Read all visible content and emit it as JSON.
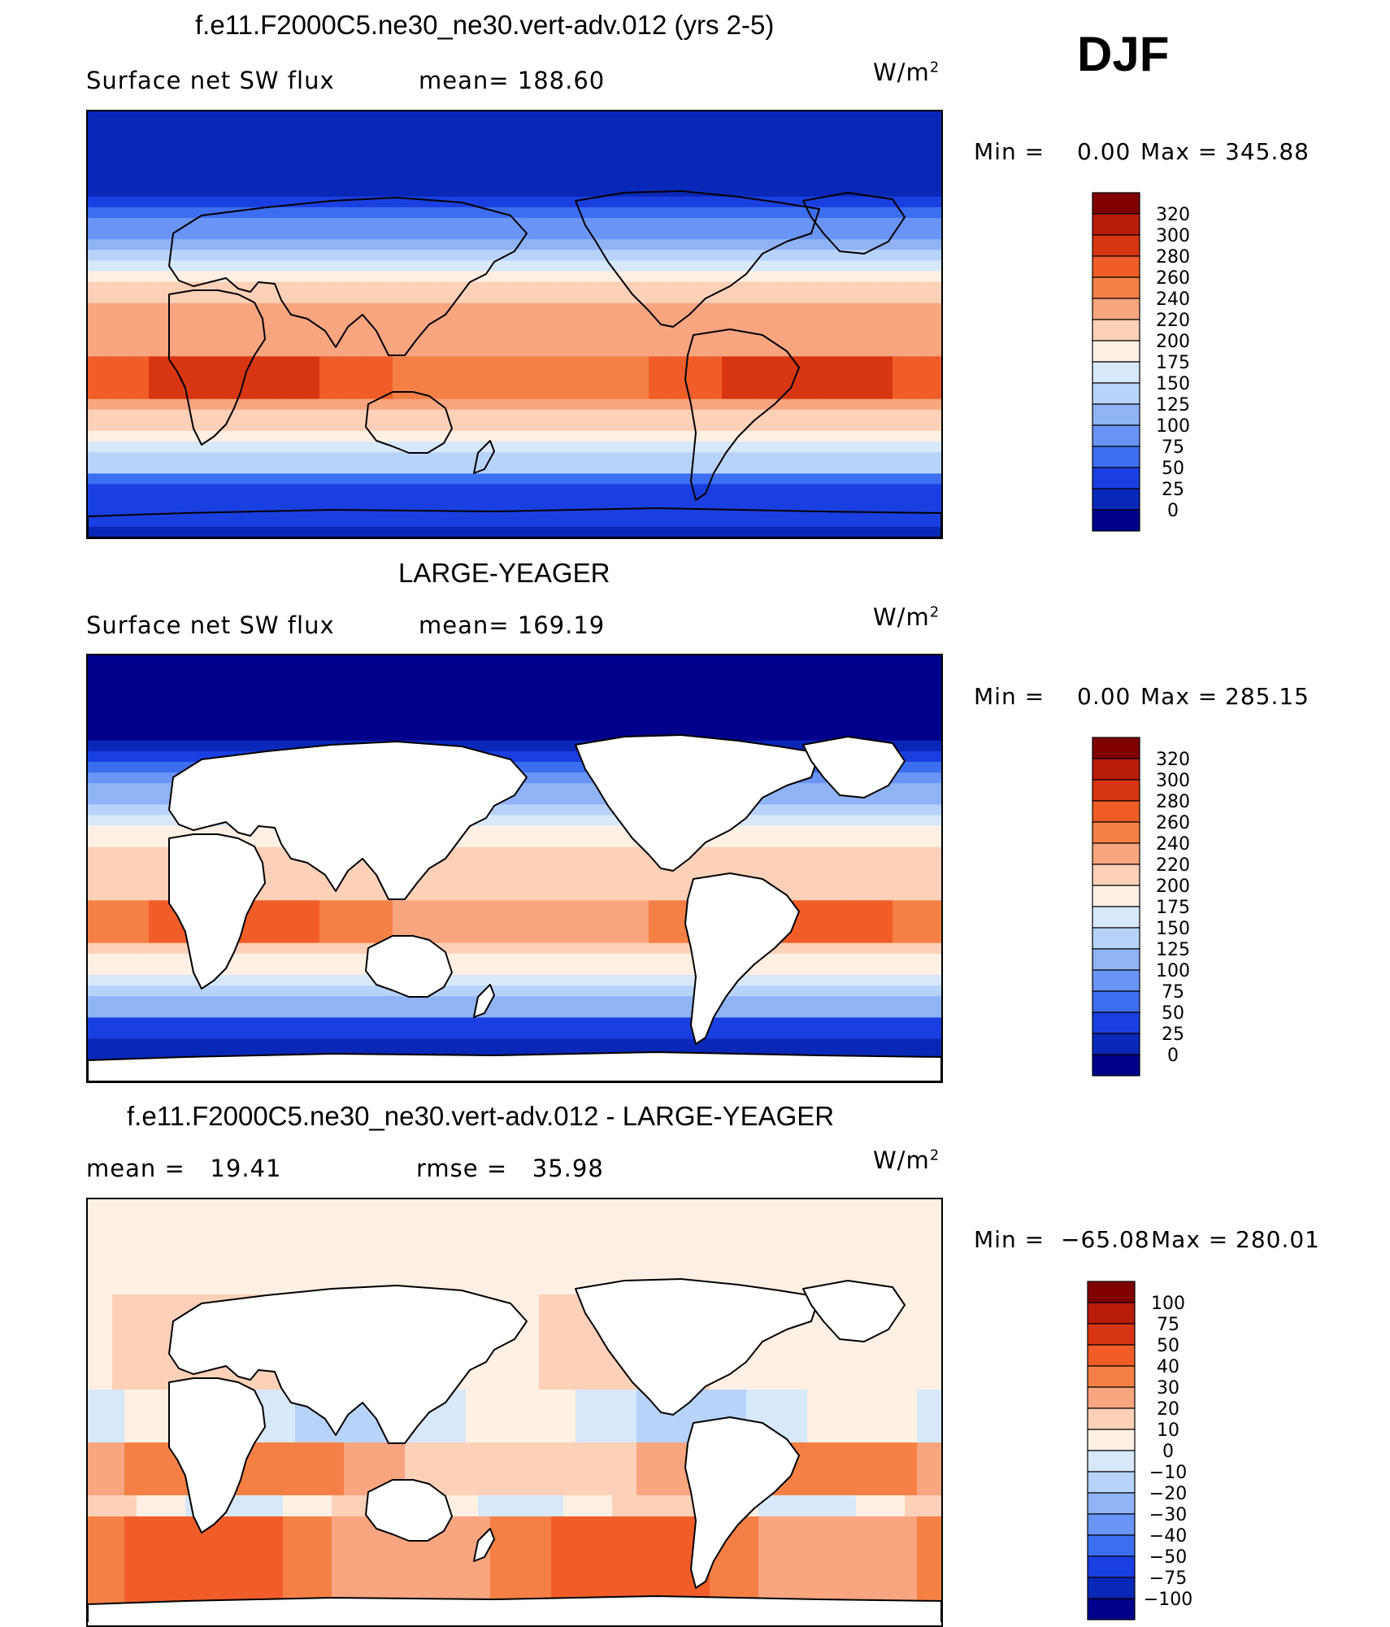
{
  "chart_data": [
    {
      "type": "heatmap",
      "title": "f.e11.F2000C5.ne30_ne30.vert-adv.012 (yrs 2-5)",
      "season": "DJF",
      "subtitle_left": "Surface net SW flux",
      "subtitle_mid": "mean= 188.60",
      "units": "W/m",
      "units_sup": "2",
      "min_text": "Min =",
      "min_val": "0.00",
      "max_text": "Max =",
      "max_val": "345.88",
      "colorbar_levels": [
        "320",
        "300",
        "280",
        "260",
        "240",
        "220",
        "200",
        "175",
        "150",
        "125",
        "100",
        "75",
        "50",
        "25",
        "0"
      ],
      "colorbar_colors": [
        "#800000",
        "#b81c0a",
        "#d83512",
        "#f05d28",
        "#f58045",
        "#f9a580",
        "#fdd0b8",
        "#fff0e3",
        "#d6e8fa",
        "#b8d3fa",
        "#8fb3f5",
        "#6a94f5",
        "#3c6ef0",
        "#1a3fe0",
        "#0a28b8",
        "#00008c"
      ],
      "land_masked": false,
      "value_range": [
        0,
        345.88
      ]
    },
    {
      "type": "heatmap",
      "title": "LARGE-YEAGER",
      "subtitle_left": "Surface net SW flux",
      "subtitle_mid": "mean= 169.19",
      "units": "W/m",
      "units_sup": "2",
      "min_text": "Min =",
      "min_val": "0.00",
      "max_text": "Max =",
      "max_val": "285.15",
      "colorbar_levels": [
        "320",
        "300",
        "280",
        "260",
        "240",
        "220",
        "200",
        "175",
        "150",
        "125",
        "100",
        "75",
        "50",
        "25",
        "0"
      ],
      "colorbar_colors": [
        "#800000",
        "#b81c0a",
        "#d83512",
        "#f05d28",
        "#f58045",
        "#f9a580",
        "#fdd0b8",
        "#fff0e3",
        "#d6e8fa",
        "#b8d3fa",
        "#8fb3f5",
        "#6a94f5",
        "#3c6ef0",
        "#1a3fe0",
        "#0a28b8",
        "#00008c"
      ],
      "land_masked": true,
      "value_range": [
        0,
        285.15
      ]
    },
    {
      "type": "heatmap",
      "title": "f.e11.F2000C5.ne30_ne30.vert-adv.012 - LARGE-YEAGER",
      "subtitle_left": "mean =   19.41",
      "subtitle_mid": "rmse =   35.98",
      "units": "W/m",
      "units_sup": "2",
      "min_text": "Min =",
      "min_val": "−65.08",
      "max_text": "Max =",
      "max_val": "280.01",
      "colorbar_levels": [
        "100",
        "75",
        "50",
        "40",
        "30",
        "20",
        "10",
        "0",
        "−10",
        "−20",
        "−30",
        "−40",
        "−50",
        "−75",
        "−100"
      ],
      "colorbar_colors": [
        "#800000",
        "#b81c0a",
        "#d83512",
        "#f05d28",
        "#f58045",
        "#f9a580",
        "#fdd0b8",
        "#fff0e3",
        "#d6e8fa",
        "#b8d3fa",
        "#8fb3f5",
        "#6a94f5",
        "#3c6ef0",
        "#1a3fe0",
        "#0a28b8",
        "#00008c"
      ],
      "land_masked": true,
      "value_range": [
        -65.08,
        280.01
      ]
    }
  ]
}
